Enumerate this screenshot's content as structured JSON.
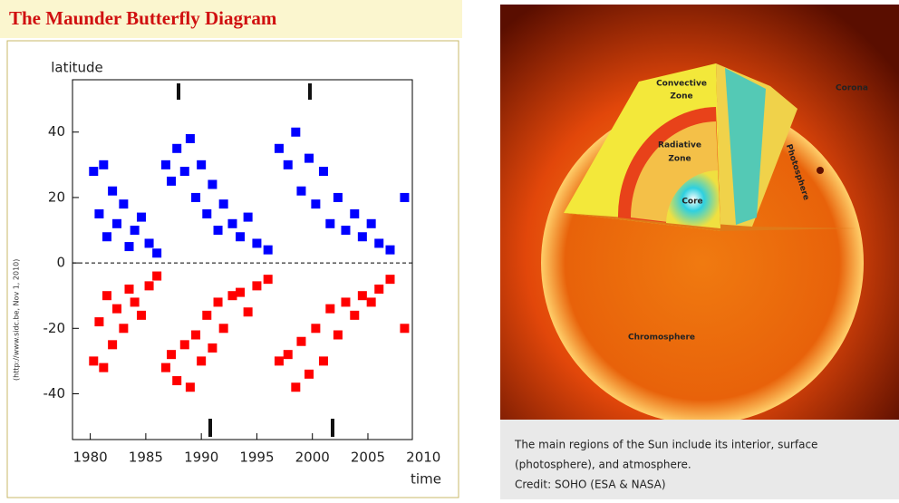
{
  "chart_data": {
    "type": "scatter",
    "title": "The Maunder Butterfly Diagram",
    "ylabel": "latitude",
    "xlabel": "time",
    "note": "(http://www.sidc.be, Nov 1, 2010)",
    "x": [
      1980.3,
      1980.8,
      1981.2,
      1981.5,
      1982,
      1982.4,
      1983,
      1983.5,
      1984,
      1984.6,
      1985.3,
      1986,
      1986.8,
      1987.3,
      1987.8,
      1988.5,
      1989,
      1989.5,
      1990,
      1990.5,
      1991,
      1991.5,
      1992,
      1992.8,
      1993.5,
      1994.2,
      1995,
      1996,
      1997,
      1997.8,
      1998.5,
      1999,
      1999.7,
      2000.3,
      2001,
      2001.6,
      2002.3,
      2003,
      2003.8,
      2004.5,
      2005.3,
      2006,
      2007,
      2008.3
    ],
    "series": [
      {
        "color": "#0000ff",
        "values": [
          28,
          15,
          30,
          8,
          22,
          12,
          18,
          5,
          10,
          14,
          6,
          3,
          30,
          25,
          35,
          28,
          38,
          20,
          30,
          15,
          24,
          10,
          18,
          12,
          8,
          14,
          6,
          4,
          35,
          30,
          40,
          22,
          32,
          18,
          28,
          12,
          20,
          10,
          15,
          8,
          12,
          6,
          4,
          20
        ]
      },
      {
        "color": "#ff0000",
        "values": [
          -30,
          -18,
          -32,
          -10,
          -25,
          -14,
          -20,
          -8,
          -12,
          -16,
          -7,
          -4,
          -32,
          -28,
          -36,
          -25,
          -38,
          -22,
          -30,
          -16,
          -26,
          -12,
          -20,
          -10,
          -9,
          -15,
          -7,
          -5,
          -30,
          -28,
          -38,
          -24,
          -34,
          -20,
          -30,
          -14,
          -22,
          -12,
          -16,
          -10,
          -12,
          -8,
          -5,
          -20
        ]
      }
    ],
    "xlim": [
      1978.4,
      2009
    ],
    "ylim": [
      -54,
      56
    ],
    "xticks": [
      1980,
      1985,
      1990,
      1995,
      2000,
      2005,
      2010
    ],
    "yticks": [
      40,
      20,
      0,
      -20,
      -40
    ]
  },
  "figure": {
    "labels": {
      "convective": [
        "Convective",
        "Zone"
      ],
      "radiative": [
        "Radiative",
        "Zone"
      ],
      "core": "Core",
      "corona": "Corona",
      "photosphere": "Photosphere",
      "chromosphere": "Chromosphere"
    },
    "caption": [
      "The main regions of the Sun include its interior, surface",
      "(photosphere), and atmosphere.",
      "Credit: SOHO (ESA & NASA)"
    ]
  }
}
